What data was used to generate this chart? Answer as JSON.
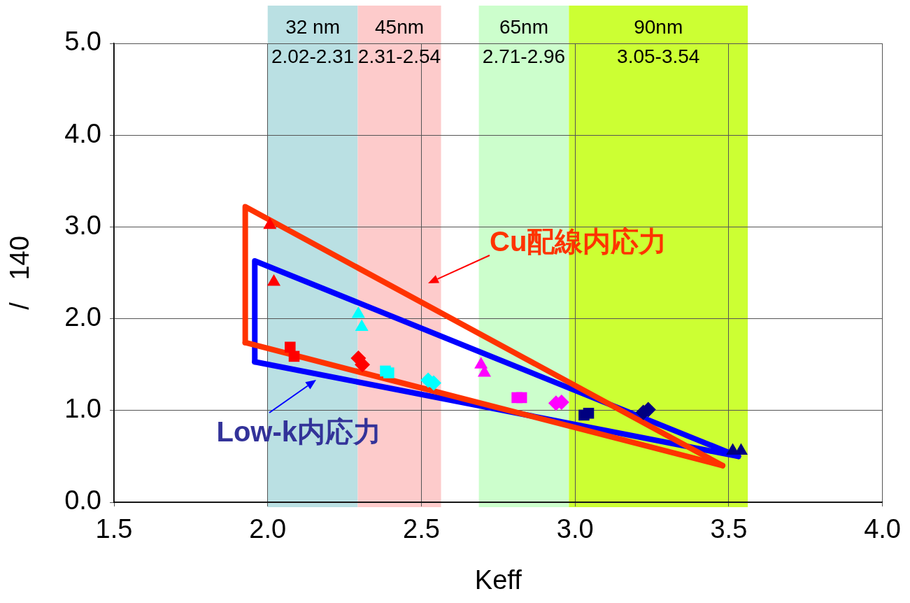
{
  "chart_data": {
    "type": "scatter",
    "xlabel": "Keff",
    "ylabel": "/   140",
    "xlim": [
      1.5,
      4.0
    ],
    "xticks": [
      1.5,
      {
        "value": 2,
        "label": "2.0"
      },
      2.5,
      {
        "value": 3,
        "label": "3.0"
      },
      3.5,
      {
        "value": 4,
        "label": "4.0"
      }
    ],
    "ylim": [
      0,
      5
    ],
    "yticks": [
      {
        "value": 0,
        "label": "0.0"
      },
      {
        "value": 1,
        "label": "1.0"
      },
      {
        "value": 2,
        "label": "2.0"
      },
      {
        "value": 3,
        "label": "3.0"
      },
      {
        "value": 4,
        "label": "4.0"
      },
      {
        "value": 5,
        "label": "5.0"
      }
    ],
    "grid": true,
    "legend": false,
    "bands": [
      {
        "axis": "x",
        "from": 2.0,
        "to": 2.293,
        "label": "32 nm\n2.02-2.31",
        "color": "#bae0e3"
      },
      {
        "axis": "x",
        "from": 2.293,
        "to": 2.564,
        "label": "45nm\n2.31-2.54",
        "color": "#fdcbcb"
      },
      {
        "axis": "x",
        "from": 2.687,
        "to": 2.98,
        "label": "65nm\n2.71-2.96",
        "color": "#ccfecc"
      },
      {
        "axis": "x",
        "from": 2.98,
        "to": 3.562,
        "label": "90nm\n3.05-3.54",
        "color": "#ccff33"
      }
    ],
    "series": [
      {
        "type": "line",
        "color": "#ff3300",
        "marker": "none",
        "x": [
          1.927,
          1.927,
          3.48
        ],
        "values": [
          1.74,
          3.22,
          0.4
        ]
      },
      {
        "type": "line",
        "color": "#ff3300",
        "marker": "none",
        "x": [
          1.927,
          3.48
        ],
        "values": [
          1.74,
          0.4
        ]
      },
      {
        "type": "line",
        "color": "#0000ff",
        "marker": "none",
        "x": [
          1.958,
          1.958,
          3.531
        ],
        "values": [
          1.53,
          2.63,
          0.5
        ]
      },
      {
        "type": "line",
        "color": "#0000ff",
        "marker": "none",
        "x": [
          1.958,
          3.531
        ],
        "values": [
          1.53,
          0.5
        ]
      },
      {
        "color": "#ff0000",
        "marker": "triangle",
        "x": [
          2.007,
          2.02
        ],
        "values": [
          3.02,
          2.4
        ]
      },
      {
        "color": "#ff0000",
        "marker": "square",
        "x": [
          2.073,
          2.086
        ],
        "values": [
          1.69,
          1.59
        ]
      },
      {
        "color": "#ff0000",
        "marker": "diamond",
        "x": [
          2.295,
          2.308
        ],
        "values": [
          1.57,
          1.5
        ]
      },
      {
        "color": "#00ffff",
        "marker": "triangle",
        "x": [
          2.295,
          2.306
        ],
        "values": [
          2.05,
          1.91
        ]
      },
      {
        "color": "#00ffff",
        "marker": "square",
        "x": [
          2.383,
          2.394
        ],
        "values": [
          1.43,
          1.41
        ]
      },
      {
        "color": "#00ffff",
        "marker": "diamond",
        "x": [
          2.522,
          2.54
        ],
        "values": [
          1.33,
          1.3
        ]
      },
      {
        "color": "#ff00ff",
        "marker": "triangle",
        "x": [
          2.694,
          2.705
        ],
        "values": [
          1.5,
          1.41
        ]
      },
      {
        "color": "#ff00ff",
        "marker": "square",
        "x": [
          2.811,
          2.826
        ],
        "values": [
          1.14,
          1.14
        ]
      },
      {
        "color": "#ff00ff",
        "marker": "diamond",
        "x": [
          2.938,
          2.956
        ],
        "values": [
          1.08,
          1.09
        ]
      },
      {
        "color": "#000080",
        "marker": "square",
        "x": [
          3.029,
          3.044
        ],
        "values": [
          0.95,
          0.97
        ]
      },
      {
        "color": "#000080",
        "marker": "diamond",
        "x": [
          3.222,
          3.238
        ],
        "values": [
          0.98,
          1.01
        ]
      },
      {
        "color": "#000080",
        "marker": "triangle",
        "x": [
          3.513,
          3.54
        ],
        "values": [
          0.56,
          0.56
        ]
      }
    ],
    "annotations": [
      "Cu配線内応力",
      "Low-k内応力"
    ]
  }
}
